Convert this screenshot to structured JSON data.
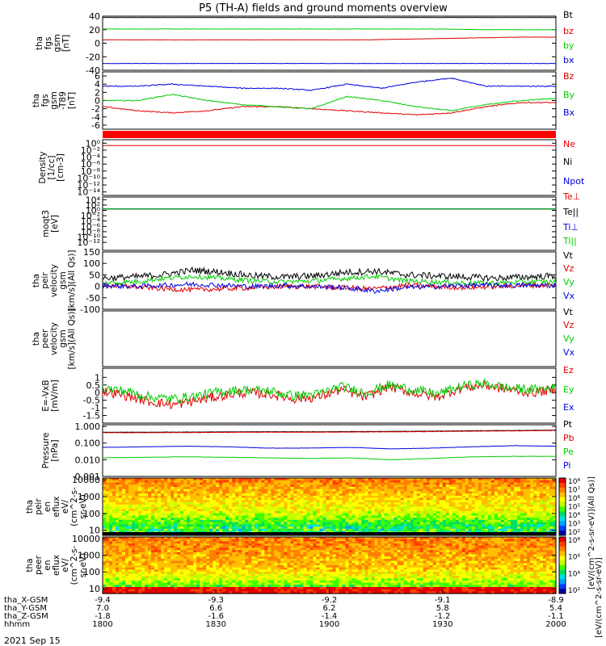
{
  "title": "P5 (TH-A) fields and ground moments overview",
  "date_label": "2021 Sep 15",
  "chart_data": [
    {
      "type": "line",
      "id": "fgs_gsm_nT",
      "ylabel": [
        "tha",
        "fgs",
        "gsm",
        "[nT]"
      ],
      "ylim": [
        -40,
        40
      ],
      "ticks": [
        "40",
        "20",
        "0",
        "-20",
        "-40"
      ],
      "tick_values": [
        40,
        20,
        0,
        -20,
        -40
      ],
      "series": [
        {
          "name": "Bt",
          "color": "#000000",
          "values": [
            38,
            38,
            38,
            38,
            38,
            38,
            38,
            38,
            38,
            38,
            38,
            38,
            38
          ]
        },
        {
          "name": "bz",
          "color": "#e00000",
          "values": [
            5,
            5,
            5,
            5,
            5,
            5,
            5,
            5,
            6,
            7,
            8,
            9,
            9
          ]
        },
        {
          "name": "by",
          "color": "#00cc00",
          "values": [
            21,
            21,
            21,
            21,
            21,
            21,
            21,
            21,
            21,
            21,
            20,
            20,
            20
          ]
        },
        {
          "name": "bx",
          "color": "#0000dd",
          "values": [
            -30,
            -30,
            -30,
            -30,
            -30,
            -30,
            -30,
            -30,
            -30,
            -30,
            -30,
            -30,
            -30
          ]
        }
      ]
    },
    {
      "type": "line",
      "id": "fgs_gsm_dt",
      "ylabel": [
        "tha",
        "fgs",
        "gsm",
        "-T89",
        "[nT]"
      ],
      "ylim": [
        -7,
        7
      ],
      "ticks": [
        "6",
        "4",
        "2",
        "0",
        "-2",
        "-4",
        "-6"
      ],
      "tick_values": [
        6,
        4,
        2,
        0,
        -2,
        -4,
        -6
      ],
      "series": [
        {
          "name": "Bz",
          "color": "#e00000",
          "values": [
            -1.5,
            -2.5,
            -3,
            -2.5,
            -1.5,
            -1.5,
            -2,
            -2.5,
            -3,
            -3.5,
            -3,
            -1.5,
            -0.5,
            -0.5
          ]
        },
        {
          "name": "By",
          "color": "#00cc00",
          "values": [
            0,
            0,
            1.5,
            0,
            -1,
            -1.5,
            -2,
            1,
            0,
            -1.5,
            -2.5,
            -1,
            0,
            0.5
          ]
        },
        {
          "name": "Bx",
          "color": "#0000dd",
          "values": [
            3.5,
            3.5,
            4,
            3.5,
            3,
            3,
            2.5,
            4,
            3,
            4.5,
            5.5,
            3.5,
            3.5,
            3.5
          ]
        }
      ]
    },
    {
      "type": "line",
      "id": "density",
      "ylabel": [
        "Density",
        "[1/cc]",
        "[cm-3]"
      ],
      "scale": "log",
      "ylim_exp": [
        -15,
        1
      ],
      "ticks": [
        "10⁰",
        "10⁻²",
        "10⁻⁴",
        "10⁻⁶",
        "10⁻⁸",
        "10⁻¹⁰",
        "10⁻¹²",
        "10⁻¹⁴"
      ],
      "tick_values": [
        0,
        -2,
        -4,
        -6,
        -8,
        -10,
        -12,
        -14
      ],
      "series": [
        {
          "name": "Ne",
          "color": "#e00000",
          "values": [
            0.2,
            0.2,
            0.2,
            0.2,
            0.2,
            0.2,
            0.2,
            0.2
          ]
        },
        {
          "name": "Ni",
          "color": "#000000",
          "values": []
        },
        {
          "name": "Npot",
          "color": "#0000dd",
          "values": []
        }
      ]
    },
    {
      "type": "line",
      "id": "temperature",
      "ylabel": [
        "moqt3",
        "[eV]"
      ],
      "scale": "log",
      "ylim_exp": [
        -15,
        5
      ],
      "ticks": [
        "10⁴",
        "10²",
        "10⁰",
        "10⁻²",
        "10⁻⁴",
        "10⁻⁶",
        "10⁻⁸",
        "10⁻¹⁰",
        "10⁻¹²"
      ],
      "tick_values": [
        4,
        2,
        0,
        -2,
        -4,
        -6,
        -8,
        -10,
        -12
      ],
      "series": [
        {
          "name": "Te⊥",
          "color": "#e00000",
          "values": [
            3.4,
            3.4,
            3.4,
            3.4,
            3.4,
            3.4,
            3.4,
            3.4
          ]
        },
        {
          "name": "Te||",
          "color": "#000000",
          "values": [
            3.6,
            3.6,
            3.6,
            3.6,
            3.6,
            3.6,
            3.6,
            3.6
          ]
        },
        {
          "name": "Ti⊥",
          "color": "#0000dd",
          "values": [
            3.8,
            3.8,
            3.8,
            3.8,
            3.8,
            3.8,
            3.8,
            3.8
          ]
        },
        {
          "name": "Ti||",
          "color": "#00cc00",
          "values": [
            3.2,
            3.2,
            3.2,
            3.2,
            3.2,
            3.2,
            3.2,
            3.2
          ]
        }
      ]
    },
    {
      "type": "line",
      "id": "peir_velocity",
      "ylabel": [
        "tha",
        "peir",
        "velocity",
        "gsm",
        "[km/s](All Qs)]"
      ],
      "ylim": [
        -100,
        150
      ],
      "ticks": [
        "150",
        "100",
        "50",
        "0",
        "-50",
        "-100"
      ],
      "tick_values": [
        150,
        100,
        50,
        0,
        -50,
        -100
      ],
      "series": [
        {
          "name": "Vt",
          "color": "#000000",
          "values": [
            30,
            35,
            45,
            65,
            55,
            40,
            35,
            40,
            55,
            60,
            45,
            40,
            35,
            30,
            35,
            40
          ]
        },
        {
          "name": "Vz",
          "color": "#e00000",
          "values": [
            0,
            -5,
            -15,
            -20,
            -15,
            -10,
            -5,
            -5,
            -10,
            -15,
            0,
            -5,
            -10,
            -5,
            0,
            0
          ]
        },
        {
          "name": "Vy",
          "color": "#00cc00",
          "values": [
            10,
            15,
            30,
            40,
            30,
            20,
            15,
            20,
            30,
            40,
            20,
            15,
            10,
            10,
            15,
            15
          ]
        },
        {
          "name": "Vx",
          "color": "#0000dd",
          "values": [
            0,
            -5,
            0,
            5,
            0,
            -5,
            0,
            -5,
            -10,
            -25,
            -10,
            -5,
            0,
            0,
            0,
            0
          ]
        }
      ]
    },
    {
      "type": "line",
      "id": "peer_velocity",
      "ylabel": [
        "tha",
        "peer",
        "velocity",
        "gsm",
        "[km/s](All Qs)]"
      ],
      "ylim": [
        -100,
        150
      ],
      "ticks": [],
      "tick_values": [],
      "series": [
        {
          "name": "Vt",
          "color": "#000000",
          "values": []
        },
        {
          "name": "Vz",
          "color": "#e00000",
          "values": []
        },
        {
          "name": "Vy",
          "color": "#00cc00",
          "values": []
        },
        {
          "name": "Vx",
          "color": "#0000dd",
          "values": []
        }
      ]
    },
    {
      "type": "line",
      "id": "efield",
      "ylabel": [
        "E=-VxB",
        "[mV/m]"
      ],
      "ylim": [
        -2,
        1.6
      ],
      "ticks": [
        "1",
        "0.5",
        "0",
        "-0.5",
        "-1",
        "-1.5"
      ],
      "tick_values": [
        1,
        0.5,
        0,
        -0.5,
        -1,
        -1.5
      ],
      "series": [
        {
          "name": "Ez",
          "color": "#e00000",
          "values": [
            0.1,
            -0.2,
            -0.6,
            -0.8,
            -0.5,
            -0.2,
            0,
            -0.1,
            -0.4,
            -0.3,
            0.2,
            -0.3,
            0.4,
            0,
            -0.3,
            0.3,
            0.5,
            0.2,
            0,
            0.2
          ]
        },
        {
          "name": "Ey",
          "color": "#00cc00",
          "values": [
            0.3,
            0.1,
            -0.3,
            -0.4,
            -0.2,
            0.1,
            0.2,
            0.1,
            -0.2,
            -0.1,
            0.4,
            0,
            0.5,
            0.2,
            -0.1,
            0.4,
            0.6,
            0.3,
            0.2,
            0.3
          ]
        },
        {
          "name": "Ex",
          "color": "#0000dd",
          "values": []
        }
      ]
    },
    {
      "type": "line",
      "id": "pressure",
      "ylabel": [
        "Pressure",
        "[nPa]"
      ],
      "scale": "log",
      "ylim_exp": [
        -3,
        0.1
      ],
      "ticks": [
        "1.000",
        "0.100",
        "0.010",
        "0.001"
      ],
      "tick_values": [
        0,
        -1,
        -2,
        -3
      ],
      "series": [
        {
          "name": "Pt",
          "color": "#000000",
          "values": [
            0.45,
            0.45,
            0.46,
            0.47,
            0.48,
            0.48,
            0.49,
            0.5,
            0.52,
            0.55,
            0.57,
            0.6
          ]
        },
        {
          "name": "Pb",
          "color": "#e00000",
          "values": [
            0.42,
            0.42,
            0.43,
            0.44,
            0.45,
            0.45,
            0.46,
            0.47,
            0.49,
            0.52,
            0.54,
            0.57
          ]
        },
        {
          "name": "Pe",
          "color": "#00cc00",
          "values": [
            0.013,
            0.014,
            0.015,
            0.014,
            0.013,
            0.012,
            0.013,
            0.01,
            0.012,
            0.015,
            0.016,
            0.016
          ]
        },
        {
          "name": "Pi",
          "color": "#0000dd",
          "values": [
            0.055,
            0.06,
            0.065,
            0.06,
            0.05,
            0.05,
            0.055,
            0.045,
            0.05,
            0.06,
            0.07,
            0.065
          ]
        }
      ]
    },
    {
      "type": "heatmap",
      "id": "peir_spec",
      "ylabel": [
        "tha",
        "peir",
        "en",
        "eflux",
        "eV/",
        "(cm^2-s-",
        "sr-eV)"
      ],
      "scale": "log",
      "ylim_exp": [
        0.7,
        4.1
      ],
      "ticks": [
        "10000",
        "1000",
        "100",
        "10"
      ],
      "tick_values": [
        4,
        3,
        2,
        1
      ]
    },
    {
      "type": "heatmap",
      "id": "peer_spec",
      "ylabel": [
        "tha",
        "peer",
        "en",
        "eflux",
        "eV/",
        "(cm^2-s-",
        "sr-eV)"
      ],
      "scale": "log",
      "ylim_exp": [
        0.7,
        4.1
      ],
      "ticks": [
        "10000",
        "1000",
        "100",
        "10"
      ],
      "tick_values": [
        4,
        3,
        2,
        1
      ]
    }
  ],
  "colorbars": [
    {
      "id": "cb_peir",
      "ticks": [
        "10⁸",
        "10⁷",
        "10⁶",
        "10⁵",
        "10⁴",
        "10³",
        "10²"
      ],
      "label": "[eV/(cm^2-s-sr-eV)](All Qs)]"
    },
    {
      "id": "cb_peer",
      "ticks": [
        "10⁸",
        "10⁶",
        "10⁴",
        "10²"
      ],
      "label": "[eV/(cm^2-s-sr-eV)]"
    }
  ],
  "x_axis": {
    "row_labels": [
      "tha_X-GSM",
      "tha_Y-GSM",
      "tha_Z-GSM",
      "hhmm"
    ],
    "ticks": [
      {
        "x_gsm": "-9.4",
        "y_gsm": "7.0",
        "z_gsm": "-1.8",
        "hhmm": "1800"
      },
      {
        "x_gsm": "-9.3",
        "y_gsm": "6.6",
        "z_gsm": "-1.6",
        "hhmm": "1830"
      },
      {
        "x_gsm": "-9.2",
        "y_gsm": "6.2",
        "z_gsm": "-1.4",
        "hhmm": "1900"
      },
      {
        "x_gsm": "-9.1",
        "y_gsm": "5.8",
        "z_gsm": "-1.2",
        "hhmm": "1930"
      },
      {
        "x_gsm": "-8.9",
        "y_gsm": "5.4",
        "z_gsm": "-1.1",
        "hhmm": "2000"
      }
    ]
  }
}
